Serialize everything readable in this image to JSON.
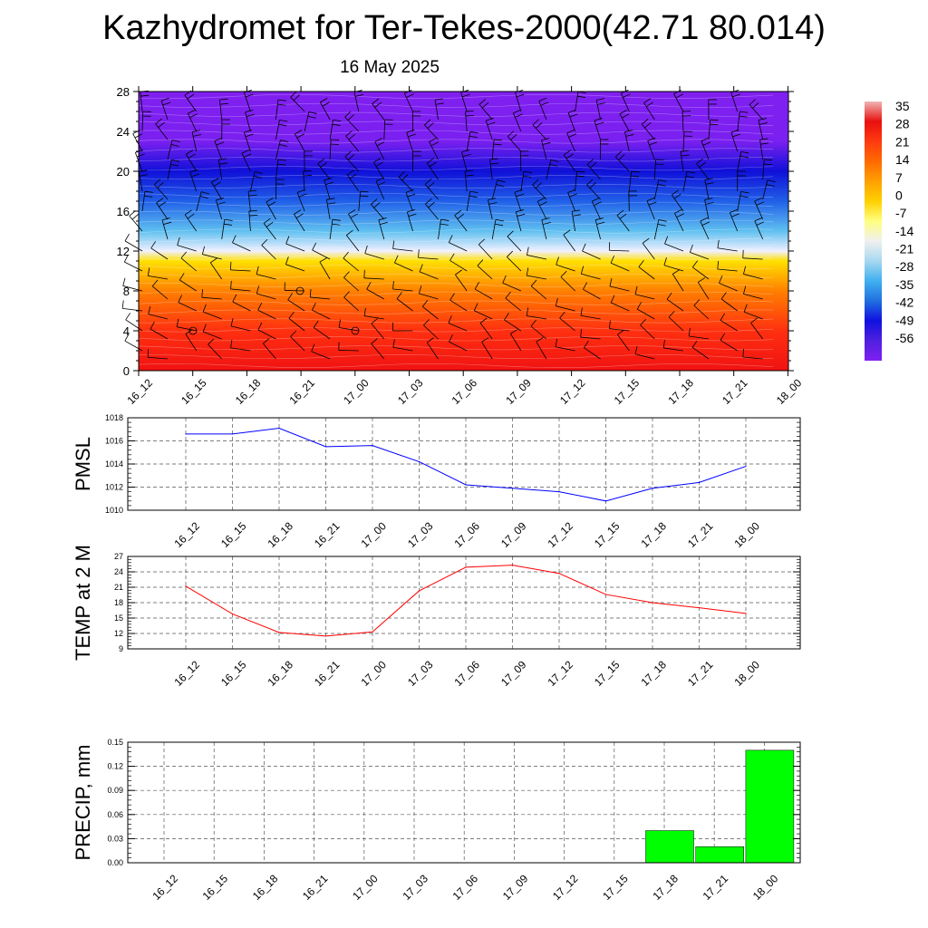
{
  "title": "Kazhydromet for Ter-Tekes-2000(42.71 80.014)",
  "subtitle": "16 May 2025",
  "chart_data": [
    {
      "type": "heatmap",
      "title": "",
      "x_categories": [
        "16_12",
        "16_15",
        "16_18",
        "16_21",
        "17_00",
        "17_03",
        "17_06",
        "17_09",
        "17_12",
        "17_15",
        "17_18",
        "17_21",
        "18_00"
      ],
      "y_ticks": [
        0,
        4,
        8,
        12,
        16,
        20,
        24,
        28
      ],
      "ylim": [
        0,
        28
      ],
      "colorbar_labels": [
        "35",
        "28",
        "21",
        "14",
        "7",
        "0",
        "-7",
        "-14",
        "-21",
        "-28",
        "-35",
        "-42",
        "-49",
        "-56"
      ],
      "colorbar_colors": [
        "#f0b4b4",
        "#e81010",
        "#ff3a10",
        "#ff6a00",
        "#ffa000",
        "#ffd000",
        "#ffff80",
        "#f0f0f0",
        "#a8d8f0",
        "#40b0f0",
        "#2070e0",
        "#1010e0",
        "#5020e0",
        "#8020f0"
      ],
      "layers": [
        {
          "height": 0,
          "color": "#f01212"
        },
        {
          "height": 4,
          "color": "#ff3010"
        },
        {
          "height": 8,
          "color": "#ff8000"
        },
        {
          "height": 11,
          "color": "#ffe000"
        },
        {
          "height": 12,
          "color": "#f0f0ff"
        },
        {
          "height": 14,
          "color": "#60c0f0"
        },
        {
          "height": 17,
          "color": "#2060e8"
        },
        {
          "height": 20,
          "color": "#1010d8"
        },
        {
          "height": 23,
          "color": "#7a20f0"
        },
        {
          "height": 28,
          "color": "#8020f0"
        }
      ],
      "grid": false
    },
    {
      "type": "line",
      "ylabel": "PMSL",
      "x_categories": [
        "16_12",
        "16_15",
        "16_18",
        "16_21",
        "17_00",
        "17_03",
        "17_06",
        "17_09",
        "17_12",
        "17_15",
        "17_18",
        "17_21",
        "18_00"
      ],
      "series": [
        {
          "values": [
            1016.6,
            1016.6,
            1017.1,
            1015.5,
            1015.6,
            1014.2,
            1012.2,
            1011.9,
            1011.6,
            1010.8,
            1011.9,
            1012.4,
            1013.8
          ],
          "color": "#0000ff"
        }
      ],
      "ylim": [
        1010,
        1018
      ],
      "y_ticks": [
        "1010",
        "1012",
        "1014",
        "1016",
        "1018"
      ],
      "grid": true
    },
    {
      "type": "line",
      "ylabel": "TEMP at 2 M",
      "x_categories": [
        "16_12",
        "16_15",
        "16_18",
        "16_21",
        "17_00",
        "17_03",
        "17_06",
        "17_09",
        "17_12",
        "17_15",
        "17_18",
        "17_21",
        "18_00"
      ],
      "series": [
        {
          "values": [
            21.2,
            15.8,
            12.2,
            11.5,
            12.3,
            20.3,
            24.9,
            25.3,
            23.7,
            19.6,
            18.0,
            17.0,
            15.9
          ],
          "color": "#ff0000"
        }
      ],
      "ylim": [
        9,
        27
      ],
      "y_ticks": [
        "9",
        "12",
        "15",
        "18",
        "21",
        "24",
        "27"
      ],
      "grid": true
    },
    {
      "type": "bar",
      "ylabel": "PRECIP, mm",
      "categories": [
        "16_12",
        "16_15",
        "16_18",
        "16_21",
        "17_00",
        "17_03",
        "17_06",
        "17_09",
        "17_12",
        "17_15",
        "17_18",
        "17_21",
        "18_00"
      ],
      "values": [
        0,
        0,
        0,
        0,
        0,
        0,
        0,
        0,
        0,
        0,
        0.04,
        0.02,
        0.14
      ],
      "ylim": [
        0,
        0.15
      ],
      "y_ticks": [
        "0.00",
        "0.03",
        "0.06",
        "0.09",
        "0.12",
        "0.15"
      ],
      "bar_color": "#00ff00",
      "grid": true
    }
  ]
}
